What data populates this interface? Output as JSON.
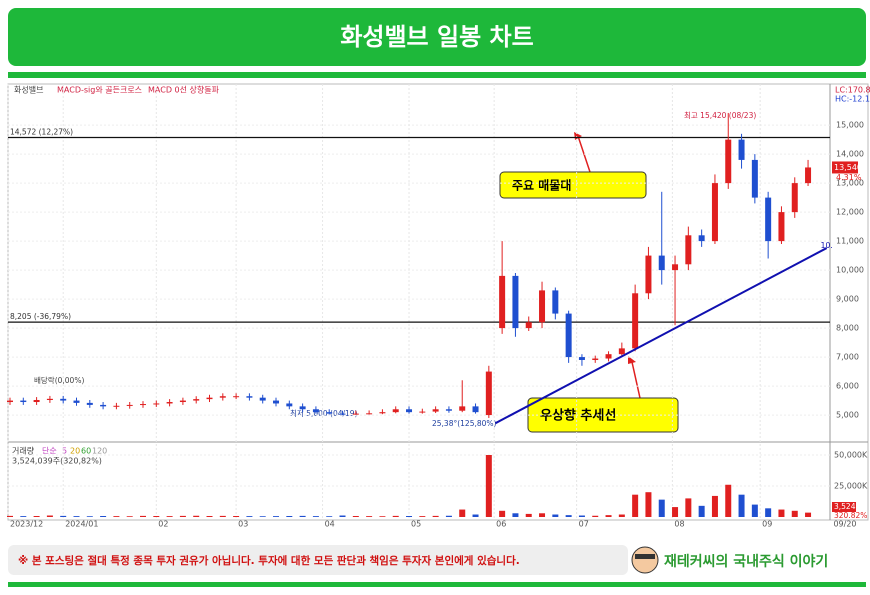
{
  "header": {
    "title": "화성밸브 일봉 차트"
  },
  "chart_data": [
    {
      "type": "candlestick",
      "legend": [
        "화성밸브",
        "MACD-sig와 골든크로스",
        "MACD 0선 상향돌파"
      ],
      "x": [
        0,
        1,
        2,
        3,
        4,
        5,
        6,
        7,
        8,
        9,
        10,
        11,
        12,
        13,
        14,
        15,
        16,
        17,
        18,
        19,
        20,
        21,
        22,
        23,
        24,
        25,
        26,
        27,
        28,
        29,
        30,
        31,
        32,
        33,
        34,
        35,
        36,
        37,
        38,
        39,
        40,
        41,
        42,
        43,
        44,
        45,
        46,
        47,
        48,
        49,
        50,
        51,
        52,
        53,
        54,
        55,
        56,
        57,
        58,
        59,
        60
      ],
      "open": [
        5450,
        5500,
        5450,
        5520,
        5560,
        5500,
        5420,
        5350,
        5300,
        5320,
        5350,
        5380,
        5400,
        5450,
        5500,
        5550,
        5600,
        5650,
        5650,
        5600,
        5500,
        5400,
        5300,
        5200,
        5100,
        5050,
        5030,
        5050,
        5060,
        5100,
        5200,
        5100,
        5120,
        5200,
        5150,
        5300,
        5000,
        8000,
        9800,
        8000,
        8200,
        9300,
        8500,
        7000,
        6900,
        6950,
        7100,
        7300,
        9200,
        10500,
        10000,
        10200,
        11200,
        11000,
        13000,
        14500,
        13800,
        12500,
        11000,
        12000,
        13000
      ],
      "high": [
        5600,
        5600,
        5620,
        5660,
        5660,
        5600,
        5520,
        5450,
        5420,
        5450,
        5480,
        5500,
        5550,
        5600,
        5650,
        5700,
        5750,
        5750,
        5750,
        5700,
        5600,
        5500,
        5400,
        5300,
        5200,
        5150,
        5150,
        5160,
        5200,
        5300,
        5300,
        5220,
        5300,
        5300,
        6200,
        5400,
        6700,
        11000,
        9900,
        8400,
        9600,
        9400,
        8600,
        7100,
        7050,
        7200,
        7500,
        9500,
        10800,
        12700,
        10500,
        11500,
        11400,
        13300,
        15420,
        14700,
        14000,
        12700,
        12200,
        13200,
        13800
      ],
      "low": [
        5350,
        5350,
        5350,
        5420,
        5400,
        5320,
        5250,
        5200,
        5200,
        5220,
        5250,
        5280,
        5300,
        5350,
        5400,
        5450,
        5500,
        5550,
        5500,
        5400,
        5300,
        5200,
        5100,
        5050,
        5020,
        5000,
        5010,
        5020,
        5030,
        5060,
        5050,
        5050,
        5070,
        5080,
        5100,
        5050,
        4900,
        7800,
        7700,
        7900,
        8000,
        8300,
        6800,
        6700,
        6800,
        6850,
        7000,
        7200,
        9000,
        9500,
        8100,
        10000,
        10800,
        10900,
        12800,
        13500,
        12300,
        10400,
        10900,
        11800,
        12900
      ],
      "close": [
        5500,
        5450,
        5520,
        5560,
        5500,
        5420,
        5350,
        5300,
        5320,
        5350,
        5380,
        5400,
        5450,
        5500,
        5550,
        5600,
        5650,
        5650,
        5600,
        5500,
        5400,
        5300,
        5200,
        5100,
        5050,
        5030,
        5050,
        5060,
        5100,
        5200,
        5100,
        5120,
        5200,
        5150,
        5300,
        5100,
        6500,
        9800,
        8000,
        8200,
        9300,
        8500,
        7000,
        6900,
        6950,
        7100,
        7300,
        9200,
        10500,
        10000,
        10200,
        11200,
        11000,
        13000,
        14500,
        13800,
        12500,
        11000,
        12000,
        13000,
        13540
      ],
      "up_color": "#e02020",
      "down_color": "#1f4fd0",
      "xlim": [
        -0.15,
        61.65
      ],
      "xticks": [
        {
          "value": -0.15,
          "label": "2023/12"
        },
        {
          "value": 4,
          "label": "2024/01"
        },
        {
          "value": 11,
          "label": "02"
        },
        {
          "value": 17,
          "label": "03"
        },
        {
          "value": 23.5,
          "label": "04"
        },
        {
          "value": 30,
          "label": "05"
        },
        {
          "value": 36.4,
          "label": "06"
        },
        {
          "value": 42.6,
          "label": "07"
        },
        {
          "value": 49.8,
          "label": "08"
        },
        {
          "value": 56.4,
          "label": "09"
        }
      ],
      "end_date": "09/20",
      "ylim": [
        4140,
        15970
      ],
      "yticks": [
        {
          "value": 5000,
          "label": "5,000"
        },
        {
          "value": 6000,
          "label": "6,000"
        },
        {
          "value": 7000,
          "label": "7,000"
        },
        {
          "value": 8000,
          "label": "8,000"
        },
        {
          "value": 9000,
          "label": "9,000"
        },
        {
          "value": 10000,
          "label": "10,000"
        },
        {
          "value": 11000,
          "label": "11,000"
        },
        {
          "value": 12000,
          "label": "12,000"
        },
        {
          "value": 13000,
          "label": "13,000"
        },
        {
          "value": 14000,
          "label": "14,000"
        },
        {
          "value": 15000,
          "label": "15,000"
        }
      ],
      "levels": [
        {
          "value": 14572,
          "label": "14,572 (12,27%)"
        },
        {
          "value": 8205,
          "label": "8,205 (-36,79%)"
        }
      ],
      "trendline": {
        "x": [
          36.5,
          61.4
        ],
        "y": [
          4720,
          10760
        ],
        "label": "10."
      },
      "annotations": [
        "최고 15,420 (08/23)",
        "최저 5,000 (04/19)",
        "25,38°(125,80%)",
        "배당락(0,00%)"
      ],
      "callouts": [
        "주요 매물대",
        "우상향 추세선"
      ],
      "corner_labels": [
        "LC:170.80",
        "HC:-12.19"
      ],
      "last_price": {
        "value": 13540,
        "label": "13,540",
        "change": "4.31%"
      }
    },
    {
      "type": "bar",
      "legend": [
        "거래량",
        "단순",
        "5",
        "20",
        "60",
        "120"
      ],
      "info": "3,524,039주(320,82%)",
      "values": [
        900,
        700,
        800,
        1200,
        900,
        700,
        600,
        800,
        700,
        600,
        900,
        800,
        700,
        900,
        1000,
        800,
        900,
        800,
        700,
        600,
        700,
        800,
        900,
        700,
        600,
        1200,
        800,
        700,
        600,
        900,
        800,
        700,
        900,
        1000,
        6000,
        2000,
        50000,
        5000,
        3000,
        2500,
        3000,
        2000,
        1500,
        1200,
        1000,
        1500,
        2000,
        18000,
        20000,
        14000,
        8000,
        15000,
        9000,
        17000,
        26000,
        18000,
        10000,
        7000,
        6000,
        5000,
        3524
      ],
      "ylim": [
        0,
        59677
      ],
      "yticks": [
        {
          "value": 25000,
          "label": "25,000K"
        },
        {
          "value": 50000,
          "label": "50,000K"
        }
      ],
      "last_label": "3,524K",
      "last_change": "320.82%"
    }
  ],
  "footer": {
    "disclaimer": "※ 본 포스팅은 절대 특정 종목 투자 권유가 아닙니다. 투자에 대한 모든 판단과 책임은 투자자 본인에게 있습니다.",
    "brand": "재테커씨의 국내주식 이야기"
  }
}
